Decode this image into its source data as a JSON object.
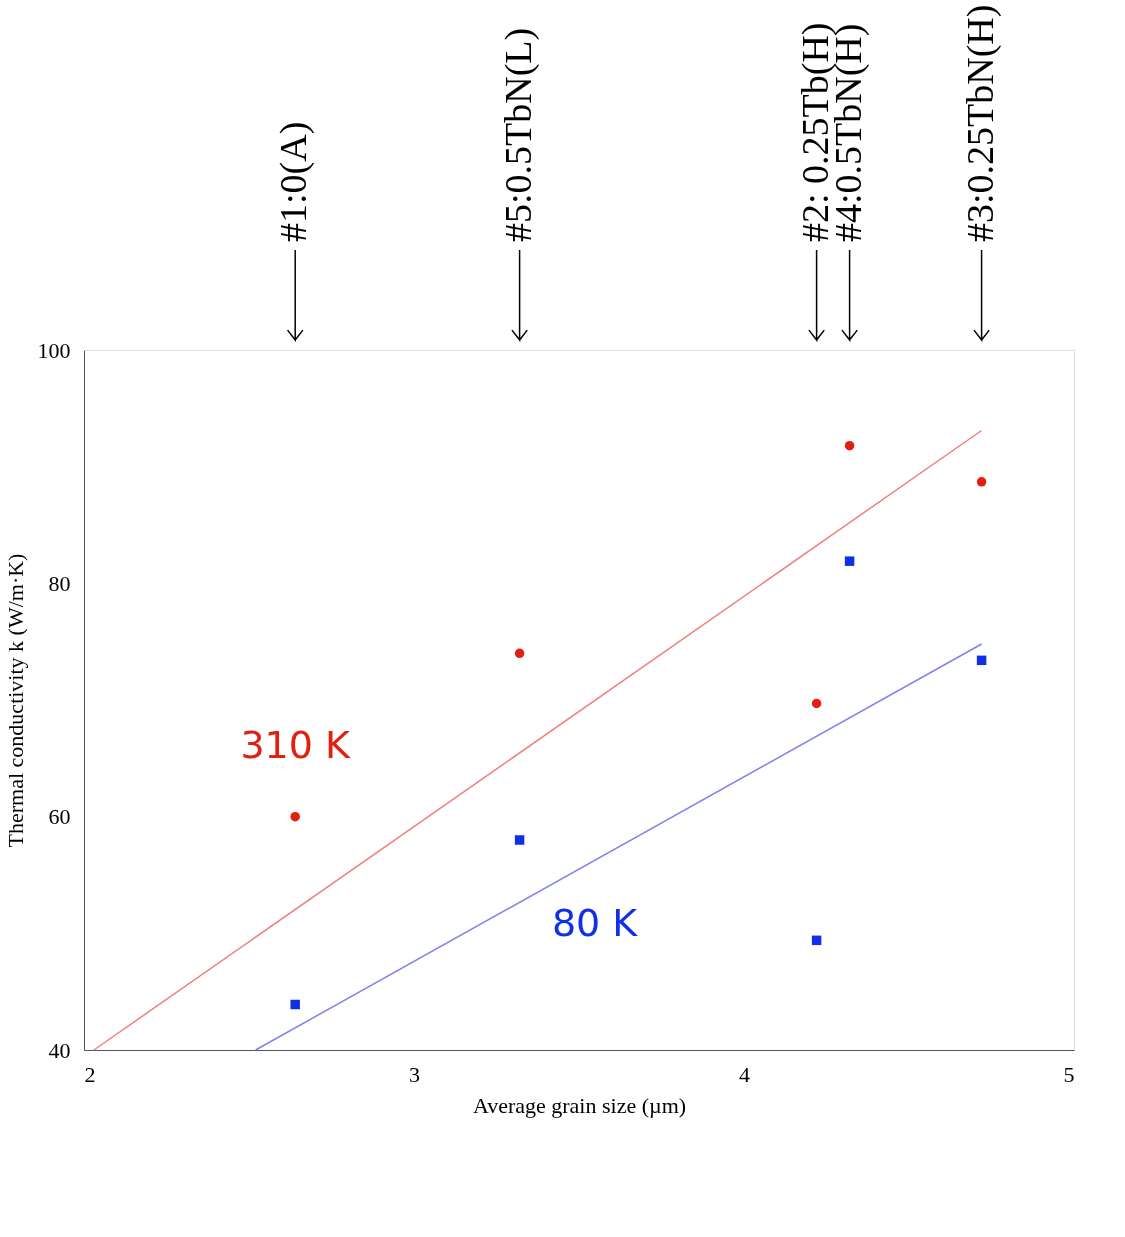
{
  "chart_data": {
    "type": "scatter",
    "xlabel": "Average grain size (µm)",
    "ylabel": "Thermal conductivity k (W/m·K)",
    "xlim": [
      2,
      5
    ],
    "xticks": [
      2,
      3,
      4,
      5
    ],
    "ylim": [
      40,
      100
    ],
    "yticks": [
      40,
      60,
      80,
      100
    ],
    "grid": false,
    "series": [
      {
        "name": "310 K",
        "marker": "circle",
        "color": "#e02010",
        "x": [
          2.64,
          3.32,
          4.22,
          4.32,
          4.72
        ],
        "values": [
          60,
          74,
          69.7,
          91.8,
          88.7
        ]
      },
      {
        "name": "80 K",
        "marker": "square",
        "color": "#1030e8",
        "x": [
          2.64,
          3.32,
          4.22,
          4.32,
          4.72
        ],
        "values": [
          43.9,
          58,
          49.4,
          81.9,
          73.4
        ]
      },
      {
        "type": "line",
        "color": "#f08080",
        "x": [
          2.03,
          4.72
        ],
        "values": [
          40,
          93.1
        ]
      },
      {
        "type": "line",
        "color": "#8080f0",
        "x": [
          2.52,
          4.72
        ],
        "values": [
          40,
          74.8
        ]
      }
    ],
    "annotations": [
      "#1:0(A)",
      "#5:0.5TbN(L)",
      "#2: 0.25Tb(H)",
      "#4:0.5TbN(H)",
      "#3:0.25TbN(H)"
    ]
  }
}
